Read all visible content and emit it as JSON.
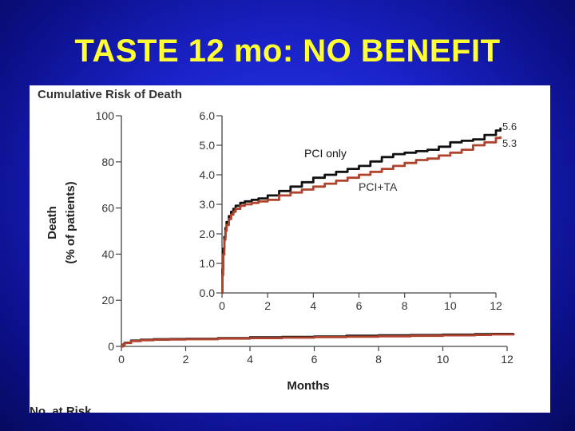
{
  "slide": {
    "title": "TASTE 12 mo: NO BENEFIT"
  },
  "colors": {
    "background": "#1a22c8",
    "title": "#ffff33",
    "pci_only": "#111111",
    "pci_ta": "#b0432e"
  },
  "chart_data": [
    {
      "type": "line",
      "role": "main",
      "title": "Cumulative Risk of Death",
      "xlabel": "Months",
      "ylabel_line1": "Death",
      "ylabel_line2": "(% of patients)",
      "xlim": [
        0,
        12
      ],
      "ylim": [
        0,
        100
      ],
      "xticks": [
        "0",
        "2",
        "4",
        "6",
        "8",
        "10",
        "12"
      ],
      "yticks": [
        "0",
        "20",
        "40",
        "60",
        "80",
        "100"
      ],
      "series": [
        {
          "name": "PCI only",
          "x": [
            0,
            0.05,
            0.1,
            0.3,
            0.6,
            1,
            1.5,
            2,
            3,
            4,
            5,
            6,
            7,
            8,
            9,
            10,
            11,
            11.5,
            12.2
          ],
          "y": [
            0,
            0.8,
            1.6,
            2.5,
            2.9,
            3.1,
            3.2,
            3.3,
            3.6,
            3.9,
            4.1,
            4.3,
            4.6,
            4.8,
            4.9,
            5.1,
            5.3,
            5.4,
            5.6
          ]
        },
        {
          "name": "PCI+TA",
          "x": [
            0,
            0.05,
            0.1,
            0.3,
            0.6,
            1,
            1.5,
            2,
            3,
            4,
            5,
            6,
            7,
            8,
            9,
            10,
            11,
            11.5,
            12.2
          ],
          "y": [
            0,
            0.7,
            1.5,
            2.3,
            2.7,
            2.9,
            3.0,
            3.1,
            3.4,
            3.6,
            3.8,
            4.0,
            4.2,
            4.4,
            4.6,
            4.8,
            5.0,
            5.2,
            5.3
          ]
        }
      ]
    },
    {
      "type": "line",
      "role": "inset",
      "xlim": [
        0,
        12
      ],
      "ylim": [
        0,
        6
      ],
      "xticks": [
        "0",
        "2",
        "4",
        "6",
        "8",
        "10",
        "12"
      ],
      "yticks": [
        "0.0",
        "1.0",
        "2.0",
        "3.0",
        "4.0",
        "5.0",
        "6.0"
      ],
      "series_labels": [
        "PCI only",
        "PCI+TA"
      ],
      "end_labels": [
        "5.6",
        "5.3"
      ],
      "series": [
        {
          "name": "PCI only",
          "x": [
            0,
            0.02,
            0.05,
            0.1,
            0.15,
            0.2,
            0.3,
            0.4,
            0.5,
            0.6,
            0.8,
            1,
            1.3,
            1.6,
            2,
            2.5,
            3,
            3.5,
            4,
            4.5,
            5,
            5.5,
            6,
            6.5,
            7,
            7.5,
            8,
            8.5,
            9,
            9.5,
            10,
            10.5,
            11,
            11.5,
            12,
            12.2
          ],
          "y": [
            0,
            0.8,
            1.5,
            1.9,
            2.2,
            2.4,
            2.6,
            2.75,
            2.85,
            2.95,
            3.05,
            3.1,
            3.15,
            3.2,
            3.3,
            3.45,
            3.6,
            3.75,
            3.9,
            4.0,
            4.1,
            4.2,
            4.3,
            4.45,
            4.6,
            4.7,
            4.75,
            4.8,
            4.85,
            4.95,
            5.1,
            5.15,
            5.2,
            5.35,
            5.5,
            5.6
          ]
        },
        {
          "name": "PCI+TA",
          "x": [
            0,
            0.02,
            0.05,
            0.1,
            0.15,
            0.2,
            0.3,
            0.4,
            0.5,
            0.6,
            0.8,
            1,
            1.3,
            1.6,
            2,
            2.5,
            3,
            3.5,
            4,
            4.5,
            5,
            5.5,
            6,
            6.5,
            7,
            7.5,
            8,
            8.5,
            9,
            9.5,
            10,
            10.5,
            11,
            11.5,
            12,
            12.2
          ],
          "y": [
            0,
            0.6,
            1.3,
            1.8,
            2.1,
            2.3,
            2.5,
            2.65,
            2.75,
            2.85,
            2.95,
            3.0,
            3.05,
            3.1,
            3.15,
            3.3,
            3.4,
            3.5,
            3.6,
            3.7,
            3.8,
            3.9,
            4.0,
            4.1,
            4.2,
            4.3,
            4.4,
            4.5,
            4.55,
            4.65,
            4.75,
            4.85,
            5.0,
            5.1,
            5.25,
            5.3
          ]
        }
      ]
    }
  ],
  "risk_table": {
    "header": "No. at Risk"
  }
}
